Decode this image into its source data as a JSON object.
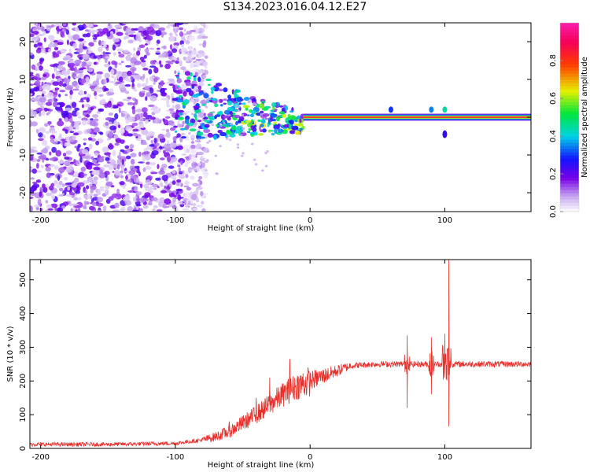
{
  "title": "S134.2023.016.04.12.E27",
  "colors": {
    "snr_line": "#e8302a",
    "axis": "#000000"
  },
  "chart_data": [
    {
      "type": "heatmap",
      "xlabel": "Height of straight line (km)",
      "ylabel": "Frequency (Hz)",
      "xlim": [
        -208,
        164
      ],
      "ylim": [
        -25,
        25
      ],
      "xticks": [
        "-200",
        "-100",
        "0",
        "100"
      ],
      "xtick_values": [
        -200,
        -100,
        0,
        100
      ],
      "yticks": [
        "-20",
        "-10",
        "0",
        "10",
        "20"
      ],
      "ytick_values": [
        -20,
        -10,
        0,
        10,
        20
      ],
      "colorbar": {
        "label": "Normalized spectral amplitude",
        "range": [
          0,
          1
        ],
        "ticks": [
          "0.0",
          "0.2",
          "0.4",
          "0.6",
          "0.8"
        ],
        "tick_values": [
          0.0,
          0.2,
          0.4,
          0.6,
          0.8
        ]
      },
      "features": {
        "noise_region_x": [
          -208,
          -85
        ],
        "transition_region_x": [
          -100,
          -5
        ],
        "carrier_line_x": [
          -5,
          164
        ],
        "carrier_frequency": 0
      }
    },
    {
      "type": "line",
      "xlabel": "Height of straight line (km)",
      "ylabel": "SNR (10 * v/v)",
      "xlim": [
        -208,
        164
      ],
      "ylim": [
        0,
        560
      ],
      "xticks": [
        "-200",
        "-100",
        "0",
        "100"
      ],
      "xtick_values": [
        -200,
        -100,
        0,
        100
      ],
      "yticks": [
        "0",
        "100",
        "200",
        "300",
        "400",
        "500"
      ],
      "ytick_values": [
        0,
        100,
        200,
        300,
        400,
        500
      ],
      "series": [
        {
          "x": [
            -208,
            -150,
            -100,
            -90,
            -80,
            -70,
            -60,
            -50,
            -40,
            -30,
            -20,
            -10,
            0,
            10,
            20,
            30,
            40,
            50,
            60,
            70,
            80,
            90,
            100,
            110,
            120,
            130,
            140,
            150,
            164
          ],
          "values": [
            12,
            12,
            15,
            20,
            25,
            35,
            50,
            75,
            100,
            130,
            160,
            185,
            200,
            215,
            230,
            245,
            248,
            250,
            250,
            250,
            250,
            250,
            250,
            250,
            250,
            250,
            250,
            250,
            250
          ]
        }
      ],
      "spikes": [
        {
          "x": -60,
          "y": 80
        },
        {
          "x": -40,
          "y": 150
        },
        {
          "x": -30,
          "y": 210
        },
        {
          "x": -15,
          "y": 265
        },
        {
          "x": 72,
          "y": 120
        },
        {
          "x": 72,
          "y": 335
        },
        {
          "x": 90,
          "y": 330
        },
        {
          "x": 90,
          "y": 160
        },
        {
          "x": 100,
          "y": 340
        },
        {
          "x": 103,
          "y": 560
        },
        {
          "x": 103,
          "y": 65
        }
      ]
    }
  ]
}
